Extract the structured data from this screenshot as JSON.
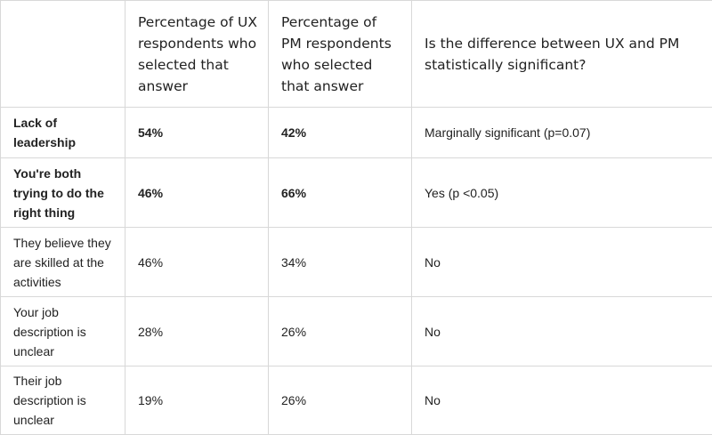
{
  "table": {
    "headers": [
      "",
      "Percentage of UX respondents who selected that answer",
      "Percentage of PM respondents who selected that answer",
      "Is the difference between UX and PM statistically significant?"
    ],
    "rows": [
      {
        "label": "Lack of leadership",
        "ux": "54%",
        "pm": "42%",
        "significance": "Marginally significant (p=0.07)"
      },
      {
        "label": "You're both trying to do the right thing",
        "ux": "46%",
        "pm": "66%",
        "significance": "Yes (p <0.05)"
      },
      {
        "label": "They believe they are skilled at the activities",
        "ux": "46%",
        "pm": "34%",
        "significance": "No"
      },
      {
        "label": "Your job description is unclear",
        "ux": "28%",
        "pm": "26%",
        "significance": "No"
      },
      {
        "label": "Their job description is unclear",
        "ux": "19%",
        "pm": "26%",
        "significance": "No"
      }
    ]
  },
  "colors": {
    "border": "#d8d8d8",
    "text": "#222222",
    "background": "#ffffff"
  }
}
